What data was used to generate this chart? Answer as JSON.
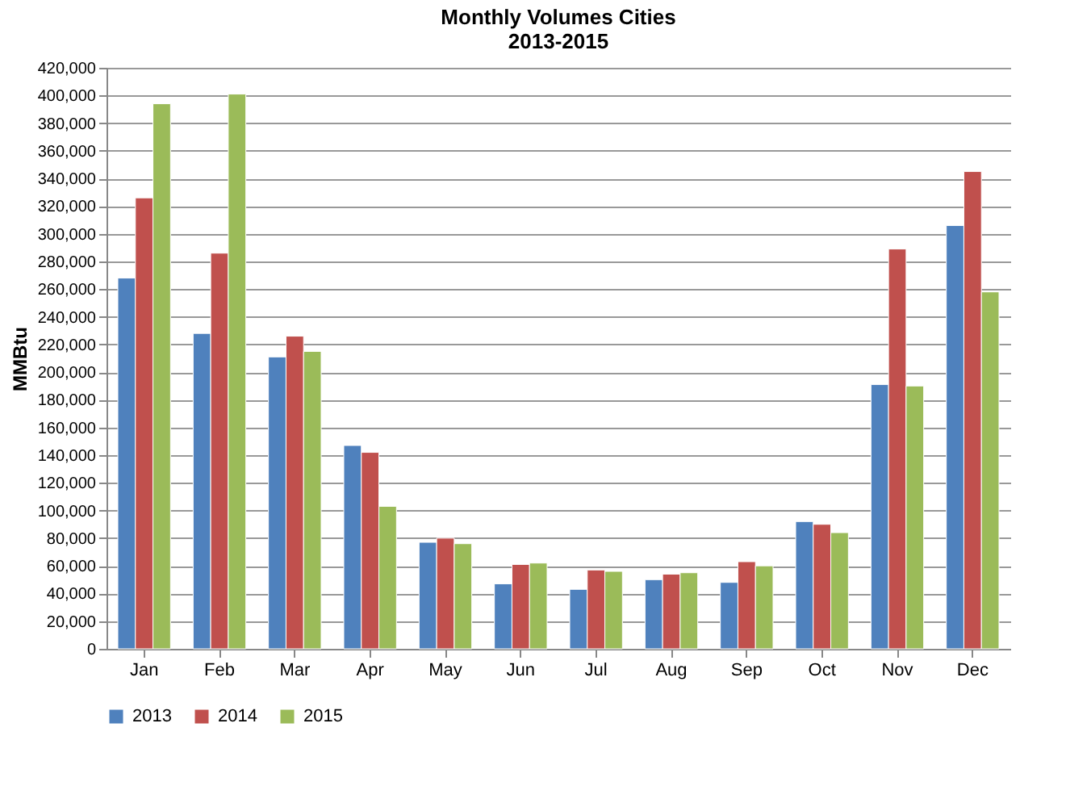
{
  "chart_data": {
    "type": "bar",
    "title": "Monthly Volumes Cities\n2013-2015",
    "ylabel": "MMBtu",
    "categories": [
      "Jan",
      "Feb",
      "Mar",
      "Apr",
      "May",
      "Jun",
      "Jul",
      "Aug",
      "Sep",
      "Oct",
      "Nov",
      "Dec"
    ],
    "series": [
      {
        "name": "2013",
        "color": "#4f81bd",
        "values": [
          268000,
          228000,
          211000,
          147000,
          77000,
          47000,
          43000,
          50000,
          48000,
          92000,
          191000,
          306000
        ]
      },
      {
        "name": "2014",
        "color": "#c0504d",
        "values": [
          326000,
          286000,
          226000,
          142000,
          80000,
          61000,
          57000,
          54000,
          63000,
          90000,
          289000,
          345000
        ]
      },
      {
        "name": "2015",
        "color": "#9bbb59",
        "values": [
          394000,
          401000,
          215000,
          103000,
          76000,
          62000,
          56000,
          55000,
          60000,
          84000,
          190000,
          258000
        ]
      }
    ],
    "ylim": [
      0,
      420000
    ],
    "yticks": [
      0,
      {
        "value": 20000,
        "label": "20,000"
      },
      {
        "value": 40000,
        "label": "40,000"
      },
      {
        "value": 60000,
        "label": "60,000"
      },
      {
        "value": 80000,
        "label": "80,000"
      },
      {
        "value": 100000,
        "label": "100,000"
      },
      {
        "value": 120000,
        "label": "120,000"
      },
      {
        "value": 140000,
        "label": "140,000"
      },
      {
        "value": 160000,
        "label": "160,000"
      },
      {
        "value": 180000,
        "label": "180,000"
      },
      {
        "value": 200000,
        "label": "200,000"
      },
      {
        "value": 220000,
        "label": "220,000"
      },
      {
        "value": 240000,
        "label": "240,000"
      },
      {
        "value": 260000,
        "label": "260,000"
      },
      {
        "value": 280000,
        "label": "280,000"
      },
      {
        "value": 300000,
        "label": "300,000"
      },
      {
        "value": 320000,
        "label": "320,000"
      },
      {
        "value": 340000,
        "label": "340,000"
      },
      {
        "value": 360000,
        "label": "360,000"
      },
      {
        "value": 380000,
        "label": "380,000"
      },
      {
        "value": 400000,
        "label": "400,000"
      },
      {
        "value": 420000,
        "label": "420,000"
      }
    ],
    "grid": "y",
    "legend": "bottom"
  }
}
